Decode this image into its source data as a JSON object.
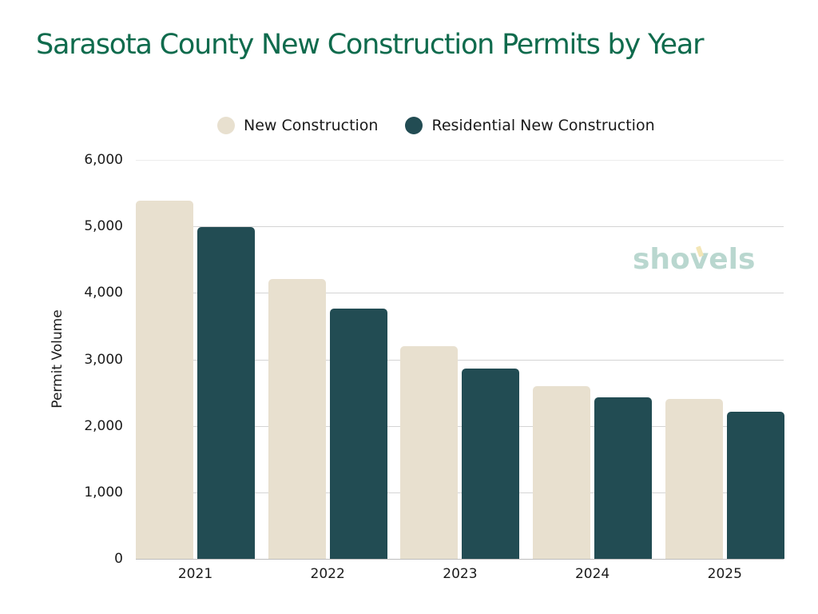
{
  "title": "Sarasota County New Construction Permits by Year",
  "legend": [
    {
      "label": "New Construction",
      "color": "#e8e0cf"
    },
    {
      "label": "Residential New Construction",
      "color": "#224c53"
    }
  ],
  "watermark": "shovels",
  "chart_data": {
    "type": "bar",
    "title": "Sarasota County New Construction Permits by Year",
    "xlabel": "",
    "ylabel": "Permit Volume",
    "ylim": [
      0,
      6000
    ],
    "yticks": [
      "0",
      "1,000",
      "2,000",
      "3,000",
      "4,000",
      "5,000",
      "6,000"
    ],
    "grid": true,
    "legend_position": "top",
    "categories": [
      "2021",
      "2022",
      "2023",
      "2024",
      "2025"
    ],
    "series": [
      {
        "name": "New Construction",
        "color": "#e8e0cf",
        "values": [
          5390,
          4210,
          3200,
          2600,
          2405
        ]
      },
      {
        "name": "Residential New Construction",
        "color": "#224c53",
        "values": [
          4985,
          3765,
          2860,
          2430,
          2210
        ]
      }
    ]
  }
}
